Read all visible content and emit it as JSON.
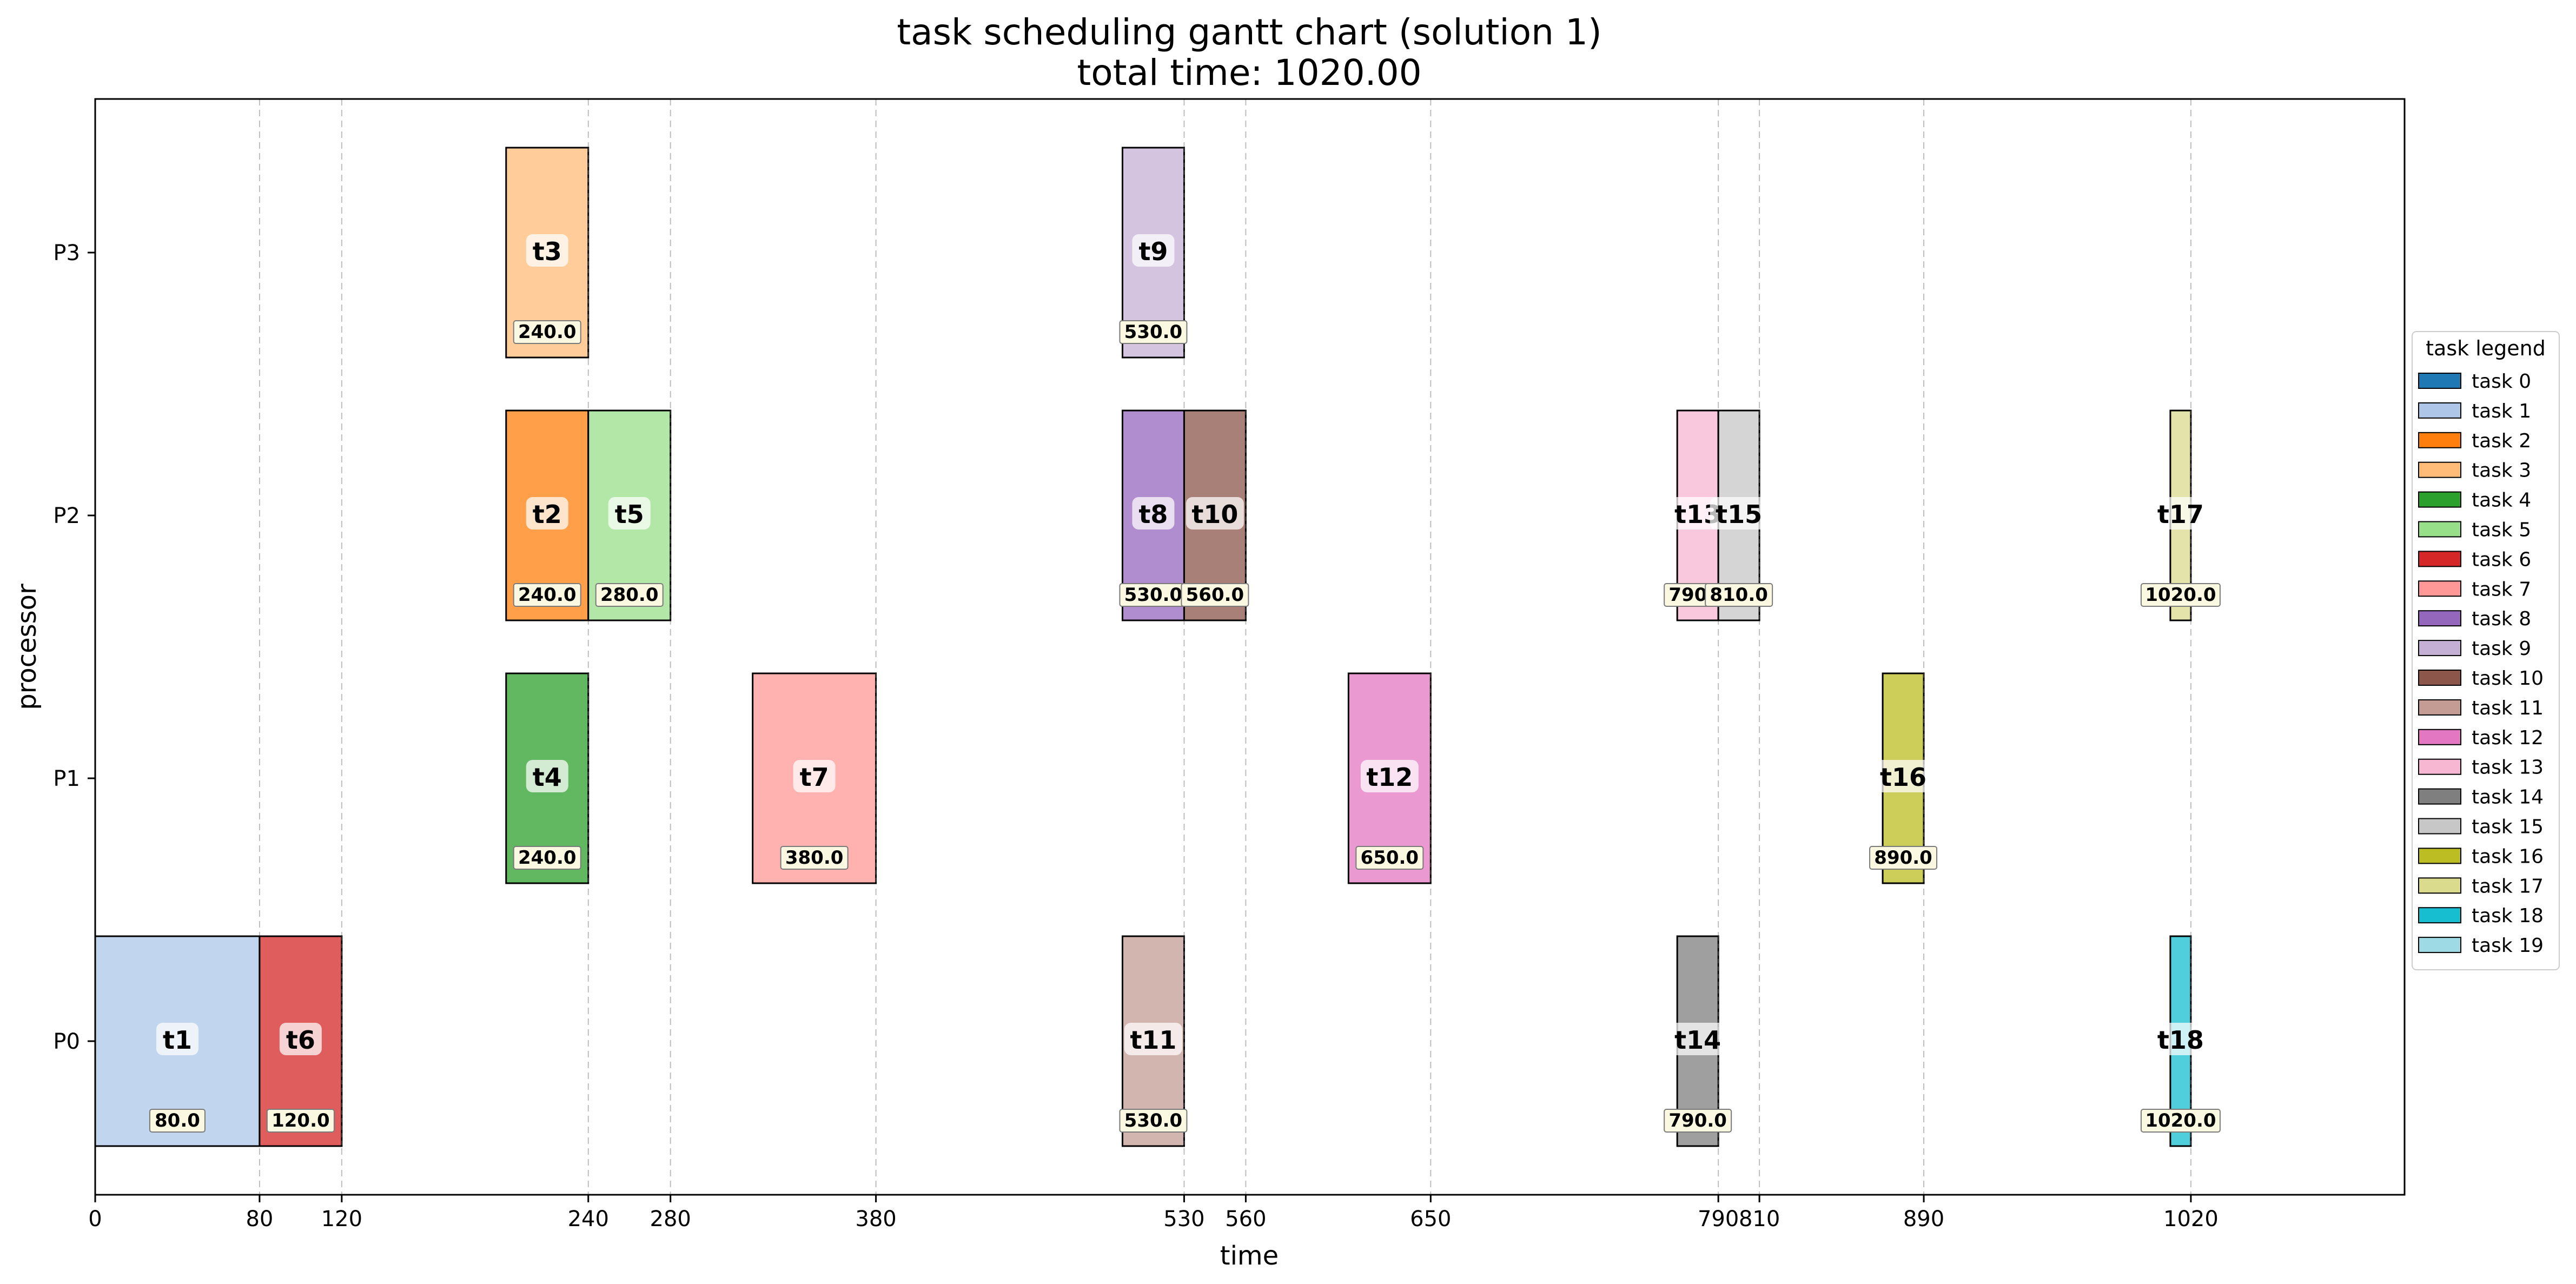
{
  "chart_data": {
    "type": "gantt",
    "title": "task scheduling gantt chart (solution 1)",
    "subtitle": "total time: 1020.00",
    "xlabel": "time",
    "ylabel": "processor",
    "xlim": [
      0,
      1124
    ],
    "x_ticks": [
      {
        "value": 0,
        "label": "0"
      },
      {
        "value": 80,
        "label": "80"
      },
      {
        "value": 120,
        "label": "120"
      },
      {
        "value": 240,
        "label": "240"
      },
      {
        "value": 280,
        "label": "280"
      },
      {
        "value": 380,
        "label": "380"
      },
      {
        "value": 530,
        "label": "530"
      },
      {
        "value": 560,
        "label": "560"
      },
      {
        "value": 650,
        "label": "650"
      },
      {
        "value": 790,
        "label": "790"
      },
      {
        "value": 810,
        "label": "810"
      },
      {
        "value": 890,
        "label": "890"
      },
      {
        "value": 1020,
        "label": "1020"
      }
    ],
    "vertical_grid": "dashed at task end times",
    "processors": [
      "P0",
      "P1",
      "P2",
      "P3"
    ],
    "tasks": [
      {
        "task": 1,
        "label": "t1",
        "processor": "P0",
        "start": 0,
        "end": 80,
        "end_label": "80.0"
      },
      {
        "task": 6,
        "label": "t6",
        "processor": "P0",
        "start": 80,
        "end": 120,
        "end_label": "120.0"
      },
      {
        "task": 11,
        "label": "t11",
        "processor": "P0",
        "start": 500,
        "end": 530,
        "end_label": "530.0"
      },
      {
        "task": 14,
        "label": "t14",
        "processor": "P0",
        "start": 770,
        "end": 790,
        "end_label": "790.0"
      },
      {
        "task": 18,
        "label": "t18",
        "processor": "P0",
        "start": 1010,
        "end": 1020,
        "end_label": "1020.0"
      },
      {
        "task": 4,
        "label": "t4",
        "processor": "P1",
        "start": 200,
        "end": 240,
        "end_label": "240.0"
      },
      {
        "task": 7,
        "label": "t7",
        "processor": "P1",
        "start": 320,
        "end": 380,
        "end_label": "380.0"
      },
      {
        "task": 12,
        "label": "t12",
        "processor": "P1",
        "start": 610,
        "end": 650,
        "end_label": "650.0"
      },
      {
        "task": 16,
        "label": "t16",
        "processor": "P1",
        "start": 870,
        "end": 890,
        "end_label": "890.0"
      },
      {
        "task": 2,
        "label": "t2",
        "processor": "P2",
        "start": 200,
        "end": 240,
        "end_label": "240.0"
      },
      {
        "task": 5,
        "label": "t5",
        "processor": "P2",
        "start": 240,
        "end": 280,
        "end_label": "280.0"
      },
      {
        "task": 8,
        "label": "t8",
        "processor": "P2",
        "start": 500,
        "end": 530,
        "end_label": "530.0"
      },
      {
        "task": 10,
        "label": "t10",
        "processor": "P2",
        "start": 530,
        "end": 560,
        "end_label": "560.0"
      },
      {
        "task": 13,
        "label": "t13",
        "processor": "P2",
        "start": 770,
        "end": 790,
        "end_label": "790.0"
      },
      {
        "task": 15,
        "label": "t15",
        "processor": "P2",
        "start": 790,
        "end": 810,
        "end_label": "810.0"
      },
      {
        "task": 17,
        "label": "t17",
        "processor": "P2",
        "start": 1010,
        "end": 1020,
        "end_label": "1020.0"
      },
      {
        "task": 3,
        "label": "t3",
        "processor": "P3",
        "start": 200,
        "end": 240,
        "end_label": "240.0"
      },
      {
        "task": 9,
        "label": "t9",
        "processor": "P3",
        "start": 500,
        "end": 530,
        "end_label": "530.0"
      }
    ],
    "legend": {
      "title": "task legend",
      "placement": "right",
      "entries": [
        {
          "label": "task 0",
          "color": "#1f77b4"
        },
        {
          "label": "task 1",
          "color": "#aec7e8"
        },
        {
          "label": "task 2",
          "color": "#ff7f0e"
        },
        {
          "label": "task 3",
          "color": "#ffbb78"
        },
        {
          "label": "task 4",
          "color": "#2ca02c"
        },
        {
          "label": "task 5",
          "color": "#98df8a"
        },
        {
          "label": "task 6",
          "color": "#d62728"
        },
        {
          "label": "task 7",
          "color": "#ff9896"
        },
        {
          "label": "task 8",
          "color": "#9467bd"
        },
        {
          "label": "task 9",
          "color": "#c5b0d5"
        },
        {
          "label": "task 10",
          "color": "#8c564b"
        },
        {
          "label": "task 11",
          "color": "#c49c94"
        },
        {
          "label": "task 12",
          "color": "#e377c2"
        },
        {
          "label": "task 13",
          "color": "#f7b6d2"
        },
        {
          "label": "task 14",
          "color": "#7f7f7f"
        },
        {
          "label": "task 15",
          "color": "#c7c7c7"
        },
        {
          "label": "task 16",
          "color": "#bcbd22"
        },
        {
          "label": "task 17",
          "color": "#dbdb8d"
        },
        {
          "label": "task 18",
          "color": "#17becf"
        },
        {
          "label": "task 19",
          "color": "#9edae5"
        }
      ]
    }
  }
}
